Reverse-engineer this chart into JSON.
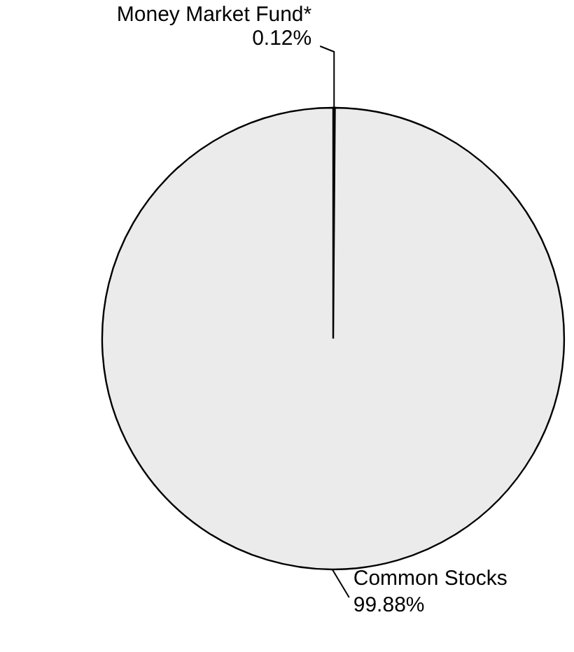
{
  "chart_data": {
    "type": "pie",
    "categories": [
      "Money Market Fund*",
      "Common Stocks"
    ],
    "values": [
      0.12,
      99.88
    ],
    "value_labels": [
      "0.12%",
      "99.88%"
    ],
    "colors": [
      "#ebebeb",
      "#ebebeb"
    ]
  }
}
